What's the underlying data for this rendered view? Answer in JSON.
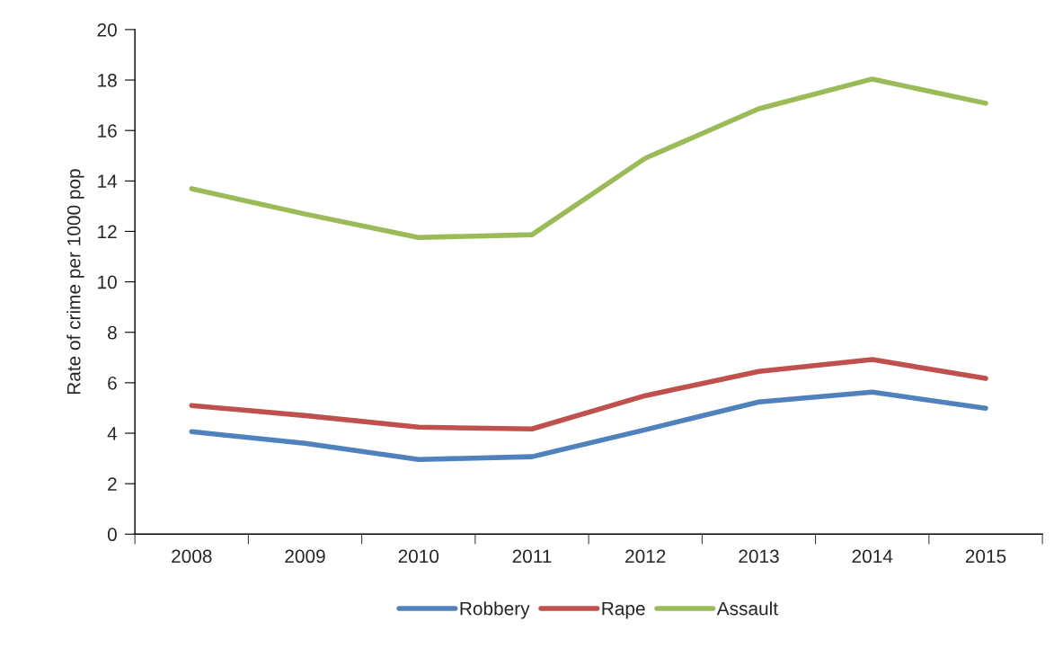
{
  "chart_data": {
    "type": "line",
    "ylabel": "Rate of crime per 1000 pop",
    "categories": [
      "2008",
      "2009",
      "2010",
      "2011",
      "2012",
      "2013",
      "2014",
      "2015"
    ],
    "series": [
      {
        "name": "Robbery",
        "color": "#4f81bd",
        "values": [
          4.06,
          3.6,
          2.96,
          3.07,
          4.14,
          5.24,
          5.63,
          4.99
        ]
      },
      {
        "name": "Rape",
        "color": "#c0504d",
        "values": [
          5.1,
          4.7,
          4.24,
          4.17,
          5.49,
          6.45,
          6.92,
          6.17
        ]
      },
      {
        "name": "Assault",
        "color": "#9bbb59",
        "values": [
          13.69,
          12.69,
          11.76,
          11.87,
          14.9,
          16.86,
          18.04,
          17.08
        ]
      }
    ],
    "ylim": [
      0,
      20
    ],
    "yticks": [
      0,
      2,
      4,
      6,
      8,
      10,
      12,
      14,
      16,
      18,
      20
    ],
    "grid": false,
    "legend": "bottom",
    "marker": "none",
    "line_style": "solid"
  }
}
